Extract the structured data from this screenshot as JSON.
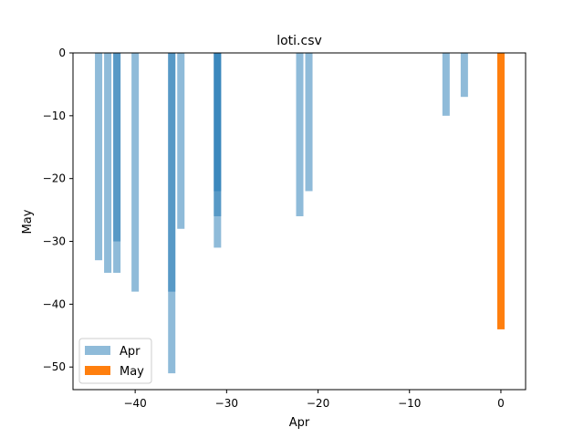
{
  "chart_data": {
    "type": "bar",
    "title": "loti.csv",
    "xlabel": "Apr",
    "ylabel": "May",
    "xlim": [
      -46.8,
      2.7
    ],
    "ylim": [
      -53.6,
      0
    ],
    "xticks": [
      -40,
      -30,
      -20,
      -10,
      0
    ],
    "yticks": [
      0,
      -10,
      -20,
      -30,
      -40,
      -50
    ],
    "bar_width": 0.8,
    "grid": false,
    "legend_position": "lower-left",
    "series": [
      {
        "name": "Apr",
        "color": "#1f77b4",
        "opacity": 0.5,
        "x": [
          -44,
          -43,
          -42,
          -42,
          -40,
          -36,
          -36,
          -35,
          -31,
          -31,
          -31,
          -22,
          -21,
          -6,
          -4
        ],
        "values": [
          -33,
          -35,
          -35,
          -30,
          -38,
          -51,
          -38,
          -28,
          -31,
          -26,
          -22,
          -26,
          -22,
          -10,
          -7
        ]
      },
      {
        "name": "May",
        "color": "#ff7f0e",
        "opacity": 1,
        "x": [
          0
        ],
        "values": [
          -44
        ]
      }
    ]
  }
}
